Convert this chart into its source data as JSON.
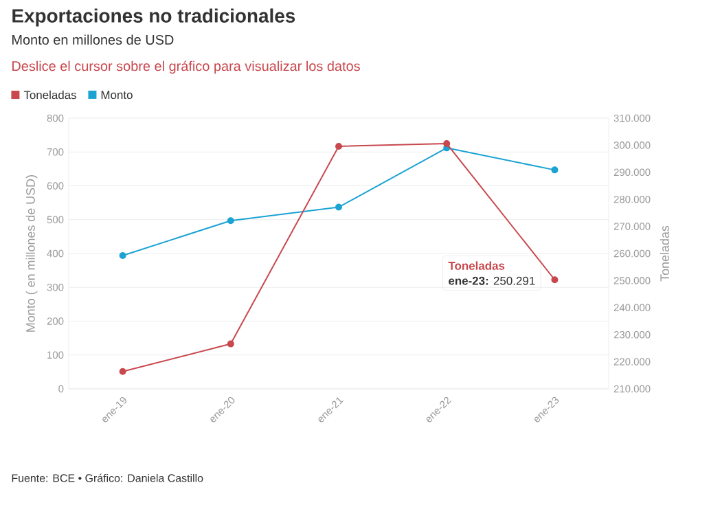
{
  "chart_data": {
    "type": "line",
    "title": "Exportaciones no tradicionales",
    "subtitle": "Monto en millones de USD",
    "ylabel": "Monto ( en millones de USD)",
    "y2label": "Toneladas",
    "annotations": [
      "Deslice el cursor sobre el gráfico para visualizar los datos",
      "Toneladas",
      "**ene-23:** 250.291",
      "Fuente: BCE • Gráfico: Daniela Castillo"
    ],
    "categories": [
      "ene-19",
      "ene-20",
      "ene-21",
      "ene-22",
      "ene-23"
    ],
    "series": [
      {
        "name": "Toneladas",
        "color": "#c8484e",
        "axis": "y2",
        "values": [
          216400,
          226600,
          299600,
          300600,
          250291
        ]
      },
      {
        "name": "Monto",
        "color": "#1ba3d3",
        "values": [
          394,
          497,
          537,
          712,
          647
        ]
      }
    ],
    "ylim": [
      0,
      800
    ],
    "yticks": [
      0,
      100,
      200,
      300,
      400,
      500,
      600,
      700,
      800
    ],
    "y2lim": [
      210000,
      310000
    ],
    "y2ticks": [
      {
        "value": 210000,
        "label": "210.000"
      },
      {
        "value": 220000,
        "label": "220.000"
      },
      {
        "value": 230000,
        "label": "230.000"
      },
      {
        "value": 240000,
        "label": "240.000"
      },
      {
        "value": 250000,
        "label": "250.000"
      },
      {
        "value": 260000,
        "label": "260.000"
      },
      {
        "value": 270000,
        "label": "270.000"
      },
      {
        "value": 280000,
        "label": "280.000"
      },
      {
        "value": 290000,
        "label": "290.000"
      },
      {
        "value": 300000,
        "label": "300.000"
      },
      {
        "value": 310000,
        "label": "310.000"
      }
    ],
    "grid": "y",
    "legend": "top left",
    "marker": "circle",
    "line_style": "solid"
  }
}
